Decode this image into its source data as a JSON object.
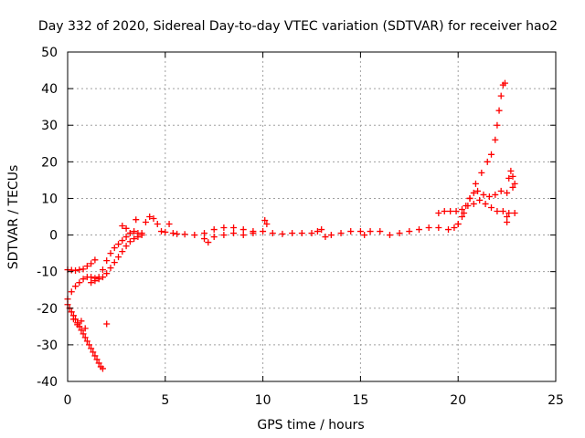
{
  "chart_data": {
    "type": "scatter",
    "title": "Day 332 of 2020, Sidereal Day-to-day VTEC variation (SDTVAR) for receiver hao2",
    "xlabel": "GPS time / hours",
    "ylabel": "SDTVAR / TECUs",
    "xlim": [
      0,
      25
    ],
    "ylim": [
      -40,
      50
    ],
    "xticks": [
      0,
      5,
      10,
      15,
      20,
      25
    ],
    "yticks": [
      -40,
      -30,
      -20,
      -10,
      0,
      10,
      20,
      30,
      40,
      50
    ],
    "grid": true,
    "legend": "none",
    "marker": "plus",
    "colors": {
      "series": "#ff0000",
      "grid": "#a0a0a0",
      "axis": "#000000"
    },
    "series": [
      {
        "points": [
          [
            0.0,
            -9.5
          ],
          [
            0.2,
            -9.6
          ],
          [
            0.4,
            -9.7
          ],
          [
            0.6,
            -9.5
          ],
          [
            0.8,
            -9.3
          ],
          [
            1.0,
            -8.5
          ],
          [
            1.2,
            -7.8
          ],
          [
            1.4,
            -6.8
          ],
          [
            0.0,
            -17.5
          ],
          [
            0.2,
            -15.5
          ],
          [
            0.4,
            -14.0
          ],
          [
            0.6,
            -13.0
          ],
          [
            0.8,
            -12.0
          ],
          [
            1.0,
            -11.5
          ],
          [
            1.2,
            -11.5
          ],
          [
            1.4,
            -11.8
          ],
          [
            1.6,
            -12.0
          ],
          [
            1.8,
            -11.5
          ],
          [
            2.0,
            -10.5
          ],
          [
            2.2,
            -9.0
          ],
          [
            2.4,
            -7.5
          ],
          [
            2.6,
            -6.0
          ],
          [
            2.8,
            -4.5
          ],
          [
            3.0,
            -3.0
          ],
          [
            3.2,
            -1.8
          ],
          [
            3.4,
            -1.0
          ],
          [
            3.6,
            -0.5
          ],
          [
            3.8,
            0.0
          ],
          [
            1.2,
            -13.0
          ],
          [
            1.4,
            -12.5
          ],
          [
            1.6,
            -11.5
          ],
          [
            1.8,
            -9.5
          ],
          [
            2.0,
            -7.0
          ],
          [
            2.2,
            -5.0
          ],
          [
            2.4,
            -3.5
          ],
          [
            2.6,
            -2.5
          ],
          [
            2.8,
            -1.5
          ],
          [
            3.0,
            -0.5
          ],
          [
            3.2,
            0.5
          ],
          [
            3.4,
            1.0
          ],
          [
            3.6,
            0.5
          ],
          [
            0.0,
            -19.0
          ],
          [
            0.1,
            -20.0
          ],
          [
            0.2,
            -21.0
          ],
          [
            0.3,
            -22.0
          ],
          [
            0.4,
            -23.0
          ],
          [
            0.5,
            -24.0
          ],
          [
            0.6,
            -25.0
          ],
          [
            0.7,
            -26.0
          ],
          [
            0.8,
            -27.0
          ],
          [
            0.9,
            -28.0
          ],
          [
            1.0,
            -29.0
          ],
          [
            1.1,
            -30.0
          ],
          [
            1.2,
            -31.0
          ],
          [
            1.3,
            -32.0
          ],
          [
            1.4,
            -33.0
          ],
          [
            1.5,
            -34.0
          ],
          [
            1.6,
            -35.0
          ],
          [
            1.7,
            -36.0
          ],
          [
            1.8,
            -36.5
          ],
          [
            0.3,
            -23.0
          ],
          [
            0.5,
            -24.5
          ],
          [
            0.7,
            -23.5
          ],
          [
            0.9,
            -25.5
          ],
          [
            2.0,
            -24.3
          ],
          [
            2.8,
            2.5
          ],
          [
            3.0,
            1.8
          ],
          [
            3.2,
            0.5
          ],
          [
            3.5,
            4.2
          ],
          [
            3.8,
            0.5
          ],
          [
            4.0,
            3.5
          ],
          [
            4.2,
            5.0
          ],
          [
            4.4,
            4.5
          ],
          [
            4.6,
            3.0
          ],
          [
            4.8,
            1.0
          ],
          [
            5.0,
            0.8
          ],
          [
            5.2,
            3.0
          ],
          [
            5.4,
            0.5
          ],
          [
            5.6,
            0.3
          ],
          [
            6.0,
            0.2
          ],
          [
            6.5,
            0.0
          ],
          [
            7.0,
            0.5
          ],
          [
            7.0,
            -1.0
          ],
          [
            7.2,
            -2.0
          ],
          [
            7.5,
            1.5
          ],
          [
            7.5,
            -0.5
          ],
          [
            8.0,
            2.0
          ],
          [
            8.0,
            0.0
          ],
          [
            8.5,
            2.0
          ],
          [
            8.5,
            0.5
          ],
          [
            9.0,
            1.5
          ],
          [
            9.0,
            0.0
          ],
          [
            9.5,
            1.0
          ],
          [
            9.5,
            0.5
          ],
          [
            10.0,
            1.0
          ],
          [
            10.1,
            4.0
          ],
          [
            10.2,
            3.0
          ],
          [
            10.5,
            0.5
          ],
          [
            11.0,
            0.3
          ],
          [
            11.5,
            0.5
          ],
          [
            12.0,
            0.5
          ],
          [
            12.5,
            0.5
          ],
          [
            12.8,
            1.0
          ],
          [
            13.0,
            1.5
          ],
          [
            13.2,
            -0.5
          ],
          [
            13.5,
            0.0
          ],
          [
            14.0,
            0.5
          ],
          [
            14.5,
            1.0
          ],
          [
            15.0,
            1.0
          ],
          [
            15.2,
            0.0
          ],
          [
            15.5,
            1.0
          ],
          [
            16.0,
            1.0
          ],
          [
            16.5,
            0.0
          ],
          [
            17.0,
            0.5
          ],
          [
            17.5,
            1.0
          ],
          [
            18.0,
            1.5
          ],
          [
            18.5,
            2.0
          ],
          [
            19.0,
            2.0
          ],
          [
            19.5,
            1.5
          ],
          [
            19.8,
            2.0
          ],
          [
            19.0,
            6.0
          ],
          [
            19.3,
            6.5
          ],
          [
            19.6,
            6.5
          ],
          [
            19.9,
            6.5
          ],
          [
            20.2,
            7.0
          ],
          [
            20.5,
            8.0
          ],
          [
            20.8,
            8.5
          ],
          [
            21.1,
            9.5
          ],
          [
            21.4,
            8.5
          ],
          [
            21.7,
            7.5
          ],
          [
            22.0,
            6.5
          ],
          [
            22.3,
            6.5
          ],
          [
            22.6,
            6.0
          ],
          [
            22.9,
            6.0
          ],
          [
            20.0,
            3.0
          ],
          [
            20.2,
            5.0
          ],
          [
            20.4,
            8.0
          ],
          [
            20.6,
            10.0
          ],
          [
            20.8,
            11.5
          ],
          [
            21.0,
            12.0
          ],
          [
            21.3,
            11.0
          ],
          [
            21.6,
            10.5
          ],
          [
            21.9,
            11.0
          ],
          [
            22.2,
            12.0
          ],
          [
            22.5,
            11.5
          ],
          [
            22.8,
            13.0
          ],
          [
            22.9,
            14.0
          ],
          [
            20.0,
            3.0
          ],
          [
            20.3,
            6.0
          ],
          [
            20.6,
            10.0
          ],
          [
            20.9,
            14.0
          ],
          [
            21.2,
            17.0
          ],
          [
            21.5,
            20.0
          ],
          [
            21.7,
            22.0
          ],
          [
            21.9,
            26.0
          ],
          [
            22.0,
            30.0
          ],
          [
            22.1,
            34.0
          ],
          [
            22.2,
            38.0
          ],
          [
            22.3,
            41.0
          ],
          [
            22.4,
            41.5
          ],
          [
            22.5,
            3.5
          ],
          [
            22.5,
            5.0
          ],
          [
            22.6,
            15.5
          ],
          [
            22.7,
            17.5
          ],
          [
            22.8,
            16.0
          ]
        ]
      }
    ]
  }
}
